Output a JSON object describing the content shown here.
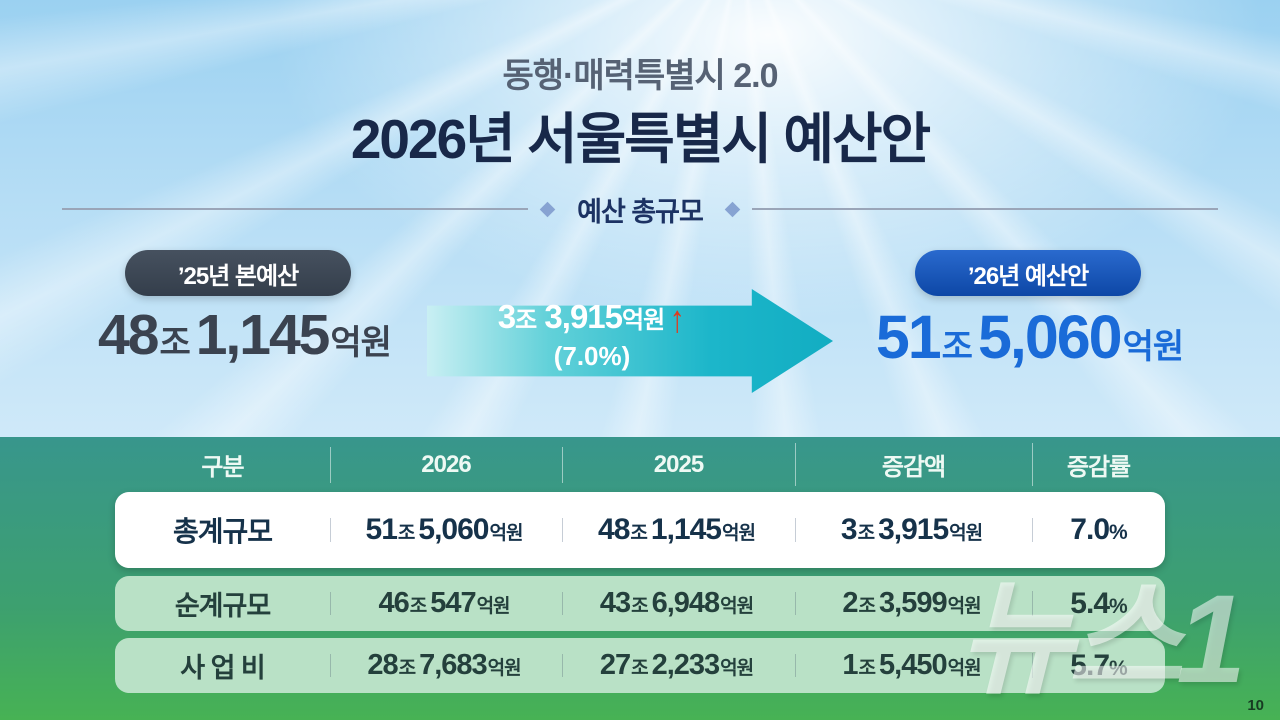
{
  "header": {
    "subtitle": "동행·매력특별시 2.0",
    "title": "2026년 서울특별시 예산안"
  },
  "section": {
    "label": "예산 총규모"
  },
  "units": {
    "jo": "조",
    "eok": "억원",
    "pct": "%"
  },
  "comparison": {
    "left": {
      "badge": "’25년 본예산",
      "jo": "48",
      "eok": "1,145"
    },
    "arrow": {
      "jo": "3",
      "eok": "3,915",
      "up": "↑",
      "pct": "(7.0%)"
    },
    "right": {
      "badge": "’26년 예산안",
      "jo": "51",
      "eok": "5,060"
    }
  },
  "table": {
    "headers": [
      "구분",
      "2026",
      "2025",
      "증감액",
      "증감률"
    ],
    "rows": [
      {
        "label": "총계규모",
        "y2026": {
          "jo": "51",
          "eok": "5,060"
        },
        "y2025": {
          "jo": "48",
          "eok": "1,145"
        },
        "diff": {
          "jo": "3",
          "eok": "3,915"
        },
        "rate": "7.0"
      },
      {
        "label": "순계규모",
        "y2026": {
          "jo": "46",
          "eok": "547"
        },
        "y2025": {
          "jo": "43",
          "eok": "6,948"
        },
        "diff": {
          "jo": "2",
          "eok": "3,599"
        },
        "rate": "5.4"
      },
      {
        "label": "사 업 비",
        "y2026": {
          "jo": "28",
          "eok": "7,683"
        },
        "y2025": {
          "jo": "27",
          "eok": "2,233"
        },
        "diff": {
          "jo": "1",
          "eok": "5,450"
        },
        "rate": "5.7"
      }
    ]
  },
  "watermark": "뉴스1",
  "page": {
    "number": "10"
  },
  "colors": {
    "sky": "#9bd1f1",
    "title_navy": "#182849",
    "subtitle_gray": "#566274",
    "pill25_bg": "#3a4553",
    "pill26_bg": "#0d47a6",
    "amount25": "#3b4350",
    "amount26": "#1a6bd8",
    "arrow_cyan": "#1cb6ca",
    "up_red": "#e23a1c",
    "table_teal": "#38968c",
    "table_green": "#47b254",
    "row_light_green": "#b9e1c6",
    "row_text_navy": "#16324a"
  }
}
